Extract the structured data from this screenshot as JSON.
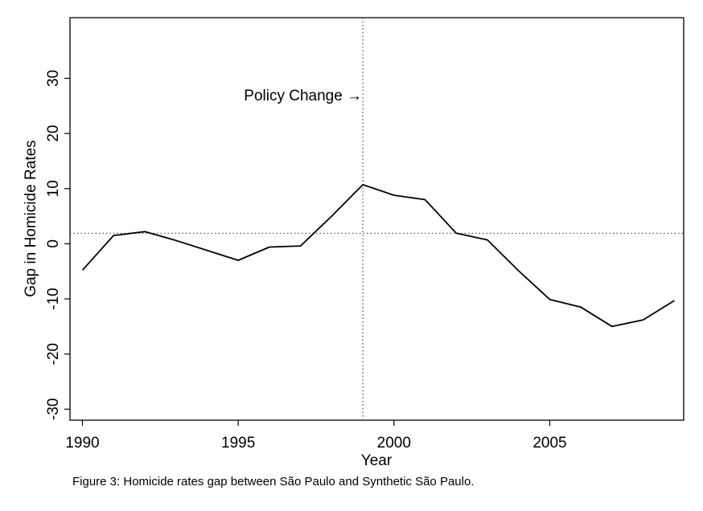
{
  "chart_data": {
    "type": "line",
    "title": "",
    "xlabel": "Year",
    "ylabel": "Gap in Homicide Rates",
    "x": [
      1990,
      1991,
      1992,
      1993,
      1994,
      1995,
      1996,
      1997,
      1998,
      1999,
      2000,
      2001,
      2002,
      2003,
      2004,
      2005,
      2006,
      2007,
      2008,
      2009
    ],
    "series": [
      {
        "values": [
          -4.8,
          1.5,
          2.2,
          0.6,
          -1.2,
          -3.0,
          -0.6,
          -0.4,
          5.0,
          10.7,
          8.8,
          8.0,
          1.9,
          0.7,
          -4.9,
          -10.1,
          -11.5,
          -15.0,
          -13.8,
          -10.3
        ]
      }
    ],
    "xlim": [
      1989.6,
      2009.3
    ],
    "ylim": [
      -32,
      41
    ],
    "xticks": [
      1990,
      1995,
      2000,
      2005
    ],
    "xtick_labels": [
      "1990",
      "1995",
      "2000",
      "2005"
    ],
    "yticks": [
      -30,
      -20,
      -10,
      0,
      10,
      20,
      30
    ],
    "ytick_labels": [
      "-30",
      "-20",
      "-10",
      "0",
      "10",
      "20",
      "30"
    ],
    "reference_lines": {
      "vertical_x": 1999,
      "horizontal_y": 1.9
    },
    "annotation": {
      "text": "Policy Change →",
      "x": 1999,
      "y": 27
    },
    "grid": false,
    "legend": "none",
    "line_color": "#000000",
    "reference_line_color": "#555555"
  },
  "caption": "Figure 3: Homicide rates gap between São Paulo and Synthetic São Paulo."
}
